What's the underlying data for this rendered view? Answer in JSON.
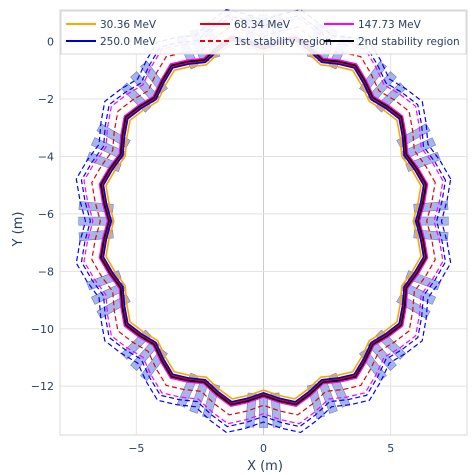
{
  "chart_data": {
    "type": "line",
    "title": "",
    "xlabel": "X (m)",
    "ylabel": "Y (m)",
    "xlim": [
      -8,
      8
    ],
    "ylim": [
      -13.7,
      1.1
    ],
    "x_ticks": [
      -5,
      0,
      5
    ],
    "x_tick_labels": [
      "−5",
      "0",
      "5"
    ],
    "y_ticks": [
      0,
      -2,
      -4,
      -6,
      -8,
      -10,
      -12
    ],
    "y_tick_labels": [
      "0",
      "−2",
      "−4",
      "−6",
      "−8",
      "−10",
      "−12"
    ],
    "grid": true,
    "legend_position": "top",
    "center": [
      0,
      -6.25
    ],
    "series": [
      {
        "name": "30.36 MeV",
        "color": "#ffa500",
        "dash": "solid",
        "radius": 6.1
      },
      {
        "name": "68.34 MeV",
        "color": "#e8000b",
        "dash": "solid",
        "radius": 6.25
      },
      {
        "name": "147.73 MeV",
        "color": "#ff00ff",
        "dash": "solid",
        "radius": 6.35
      },
      {
        "name": "250.0 MeV",
        "color": "#0000cd",
        "dash": "solid",
        "radius": 6.2
      },
      {
        "name": "1st stability region",
        "color": "#e8000b",
        "dash": "dashed",
        "radius": 6.65
      },
      {
        "name": "2nd stability region",
        "color": "#000000",
        "dash": "solid",
        "radius": 6.3
      }
    ],
    "extra_traces": [
      {
        "name": "",
        "color": "#ff00ff",
        "dash": "dashed",
        "radius": 6.95
      },
      {
        "name": "",
        "color": "#0000ff",
        "dash": "dashed",
        "radius": 7.25
      },
      {
        "name": "",
        "color": "#0000ff",
        "dash": "dashed",
        "radius": 7.05
      }
    ],
    "magnets": {
      "count": 16,
      "slabs_per_group": 3,
      "color": "#6f84d8",
      "radius": 6.6,
      "length": 1.25,
      "width": 0.3
    }
  }
}
